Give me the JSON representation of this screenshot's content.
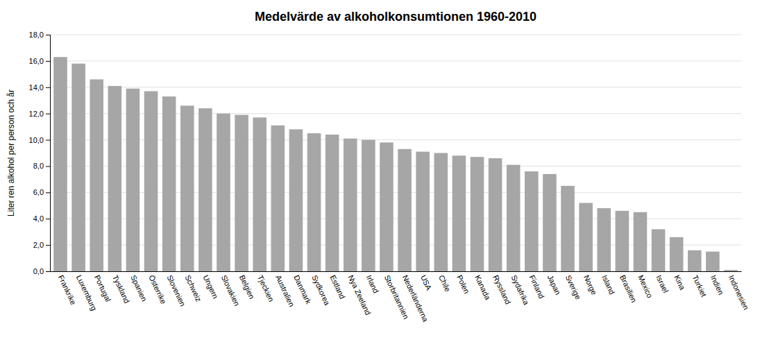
{
  "chart_data": {
    "type": "bar",
    "title": "Medelvärde av alkoholkonsumtionen 1960-2010",
    "ylabel": "Liter ren alkohol per person och år",
    "categories": [
      "Frankrike",
      "Luxemburg",
      "Portugal",
      "Tyskland",
      "Spanien",
      "Österrike",
      "Slovenien",
      "Schweiz",
      "Ungern",
      "Slovakien",
      "Belgien",
      "Tjeckien",
      "Australien",
      "Danmark",
      "Sydkorea",
      "Estland",
      "Nya Zeeland",
      "Irland",
      "Storbritannien",
      "Nederländerna",
      "USA",
      "Chile",
      "Polen",
      "Kanada",
      "Ryssland",
      "Sydafrika",
      "Finland",
      "Japan",
      "Sverige",
      "Norge",
      "Island",
      "Brasilien",
      "Mexico",
      "Israel",
      "Kina",
      "Turkiet",
      "Indien",
      "Indonesien"
    ],
    "values": [
      16.3,
      15.8,
      14.6,
      14.1,
      13.9,
      13.7,
      13.3,
      12.6,
      12.4,
      12.0,
      11.9,
      11.7,
      11.1,
      10.8,
      10.5,
      10.4,
      10.1,
      10.0,
      9.8,
      9.3,
      9.1,
      9.0,
      8.8,
      8.7,
      8.6,
      8.1,
      7.6,
      7.4,
      6.5,
      5.2,
      4.8,
      4.6,
      4.5,
      3.2,
      2.6,
      1.6,
      1.5,
      0.1
    ],
    "color": "#a6a6a6",
    "ylim": [
      0,
      18
    ],
    "yticks": [
      {
        "value": 0,
        "label": "0,0"
      },
      {
        "value": 2,
        "label": "2,0"
      },
      {
        "value": 4,
        "label": "4,0"
      },
      {
        "value": 6,
        "label": "6,0"
      },
      {
        "value": 8,
        "label": "8,0"
      },
      {
        "value": 10,
        "label": "10,0"
      },
      {
        "value": 12,
        "label": "12,0"
      },
      {
        "value": 14,
        "label": "14,0"
      },
      {
        "value": 16,
        "label": "16,0"
      },
      {
        "value": 18,
        "label": "18,0"
      }
    ],
    "grid": true
  }
}
